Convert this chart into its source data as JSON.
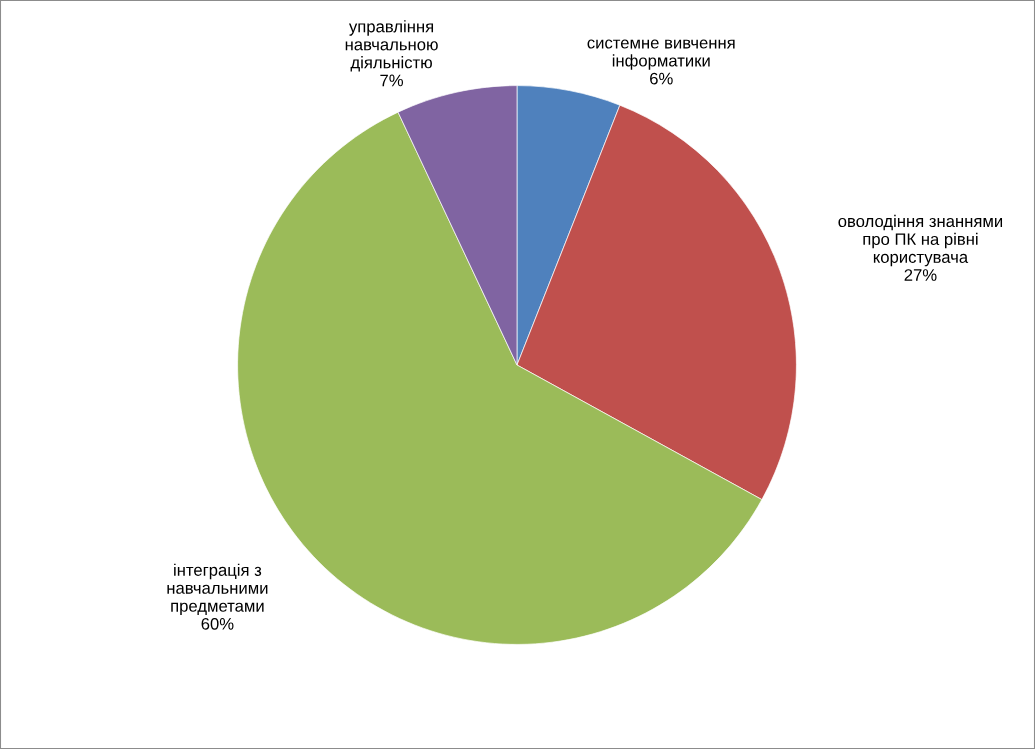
{
  "chart_data": {
    "type": "pie",
    "categories": [
      "системне вивчення інформатики",
      "оволодіння знаннями про ПК на рівні користувача",
      "інтеграція з навчальними предметами",
      "управління навчальною діяльністю"
    ],
    "values": [
      6,
      27,
      60,
      7
    ],
    "colors": [
      "#4f81bd",
      "#c0504d",
      "#9bbb59",
      "#8064a2"
    ],
    "value_labels": [
      "6%",
      "27%",
      "60%",
      "7%"
    ],
    "legend": false
  }
}
